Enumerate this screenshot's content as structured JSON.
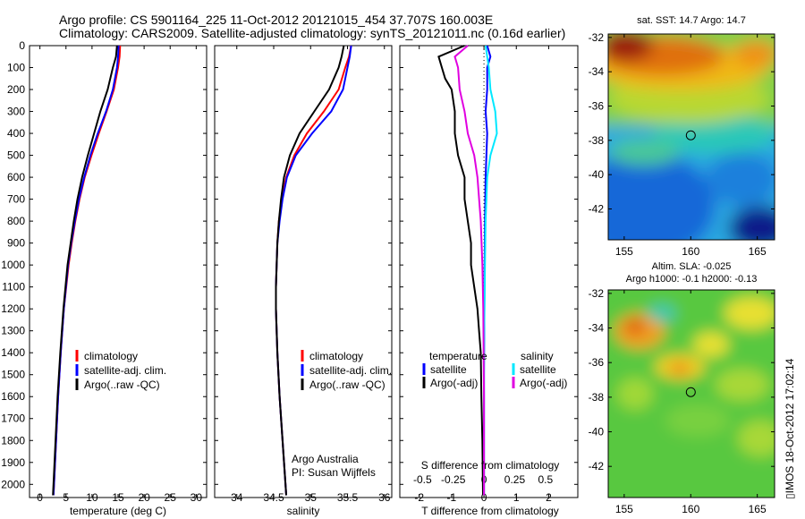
{
  "title": {
    "line1": "Argo profile: CS 5901164_225 11-Oct-2012 20121015_454 37.707S 160.003E",
    "line2": "Climatology: CARS2009. Satellite-adjusted climatology: synTS_20121011.nc (0.16d earlier)"
  },
  "credit": "IMOS 18-Oct-2012 17:02:14",
  "colors": {
    "red": "#ff0000",
    "blue": "#0000ff",
    "black": "#000000",
    "cyan": "#00e8ff",
    "magenta": "#e000e0"
  },
  "chart_data": [
    {
      "type": "line",
      "name": "temperature",
      "xlabel": "temperature (deg C)",
      "ylabel": "",
      "xlim": [
        -2,
        32
      ],
      "ylim": [
        2060,
        0
      ],
      "xticks": [
        0,
        5,
        10,
        15,
        20,
        25,
        30
      ],
      "yticks": [
        0,
        100,
        200,
        300,
        400,
        500,
        600,
        700,
        800,
        900,
        1000,
        1100,
        1200,
        1300,
        1400,
        1500,
        1600,
        1700,
        1800,
        1900,
        2000
      ],
      "legend": [
        "climatology",
        "satellite-adj. clim.",
        "Argo(..raw -QC)"
      ],
      "legend_location": "center-right",
      "series": [
        {
          "color": "red",
          "depth": [
            0,
            50,
            100,
            200,
            300,
            400,
            500,
            600,
            700,
            800,
            900,
            1000,
            1200,
            1400,
            1600,
            1800,
            2000,
            2050
          ],
          "values": [
            15.4,
            15.3,
            15.0,
            14.2,
            12.8,
            11.3,
            9.9,
            8.6,
            7.6,
            6.8,
            6.1,
            5.5,
            4.6,
            4.0,
            3.5,
            3.1,
            2.7,
            2.6
          ]
        },
        {
          "color": "blue",
          "depth": [
            0,
            50,
            100,
            200,
            300,
            400,
            500,
            600,
            700,
            800,
            900,
            1000,
            1200,
            1400,
            1600,
            1800,
            2000,
            2050
          ],
          "values": [
            15.1,
            15.0,
            14.8,
            14.0,
            12.7,
            11.1,
            9.7,
            8.5,
            7.5,
            6.7,
            6.0,
            5.4,
            4.6,
            4.0,
            3.5,
            3.1,
            2.7,
            2.6
          ]
        },
        {
          "color": "black",
          "depth": [
            0,
            50,
            100,
            200,
            300,
            400,
            500,
            600,
            700,
            800,
            900,
            1000,
            1200,
            1400,
            1600,
            1800,
            2000,
            2050
          ],
          "values": [
            14.8,
            14.6,
            14.0,
            13.0,
            11.6,
            10.4,
            9.2,
            8.1,
            7.2,
            6.5,
            5.9,
            5.3,
            4.5,
            3.9,
            3.4,
            3.0,
            2.6,
            2.5
          ]
        }
      ]
    },
    {
      "type": "line",
      "name": "salinity",
      "xlabel": "salinity",
      "ylabel": "",
      "xlim": [
        33.7,
        36.1
      ],
      "ylim": [
        2060,
        0
      ],
      "xticks": [
        34,
        34.5,
        35,
        35.5,
        36
      ],
      "legend": [
        "climatology",
        "satellite-adj. clim.",
        "Argo(..raw -QC)"
      ],
      "legend_location": "center-right",
      "annotation": [
        "Argo Australia",
        "PI: Susan Wijffels"
      ],
      "series": [
        {
          "color": "red",
          "depth": [
            0,
            50,
            100,
            200,
            300,
            400,
            500,
            600,
            700,
            800,
            900,
            1000,
            1100,
            1200,
            1400,
            1600,
            1800,
            2000,
            2050
          ],
          "values": [
            35.55,
            35.52,
            35.47,
            35.38,
            35.18,
            34.95,
            34.78,
            34.67,
            34.61,
            34.57,
            34.55,
            34.54,
            34.53,
            34.53,
            34.55,
            34.58,
            34.62,
            34.66,
            34.67
          ]
        },
        {
          "color": "blue",
          "depth": [
            0,
            50,
            100,
            200,
            300,
            400,
            500,
            600,
            700,
            800,
            900,
            1000,
            1100,
            1200,
            1400,
            1600,
            1800,
            2000,
            2050
          ],
          "values": [
            35.55,
            35.53,
            35.5,
            35.44,
            35.28,
            35.02,
            34.8,
            34.68,
            34.62,
            34.58,
            34.55,
            34.54,
            34.53,
            34.53,
            34.55,
            34.58,
            34.62,
            34.66,
            34.67
          ]
        },
        {
          "color": "black",
          "depth": [
            0,
            50,
            100,
            200,
            300,
            400,
            500,
            600,
            700,
            800,
            900,
            1000,
            1100,
            1200,
            1400,
            1600,
            1800,
            2000,
            2050
          ],
          "values": [
            35.45,
            35.42,
            35.38,
            35.25,
            35.05,
            34.85,
            34.72,
            34.64,
            34.6,
            34.57,
            34.55,
            34.54,
            34.53,
            34.53,
            34.55,
            34.58,
            34.62,
            34.66,
            34.67
          ]
        }
      ]
    },
    {
      "type": "line",
      "name": "difference",
      "xlabel": "T difference from climatology",
      "x2label": "S difference from climatology",
      "xlim": [
        -2.6,
        2.9
      ],
      "ylim": [
        2060,
        0
      ],
      "xticks": [
        -2,
        -1,
        0,
        1,
        2
      ],
      "x2ticks": [
        "-0.5",
        "-0.25",
        "0",
        "0.25",
        "0.5"
      ],
      "x2tick_positions_T": [
        -1.9,
        -0.95,
        0,
        0.95,
        1.9
      ],
      "legend": {
        "temperature_heading": "temperature",
        "salinity_heading": "salinity",
        "temperature": [
          "satellite",
          "Argo(-adj)"
        ],
        "salinity": [
          "satellite",
          "Argo(-adj)"
        ]
      },
      "series": [
        {
          "color": "blue",
          "depth": [
            0,
            50,
            100,
            200,
            300,
            400,
            600,
            800,
            1000,
            1500,
            2050
          ],
          "values": [
            0.1,
            0.2,
            0.1,
            0.1,
            0.05,
            0.1,
            0.05,
            0.03,
            0.02,
            0.0,
            0.0
          ]
        },
        {
          "color": "black",
          "depth": [
            0,
            50,
            100,
            150,
            200,
            300,
            400,
            500,
            600,
            700,
            800,
            900,
            1000,
            1100,
            1200,
            1300,
            1400,
            1600,
            1800,
            2050
          ],
          "values": [
            -0.6,
            -1.4,
            -1.3,
            -1.2,
            -1.0,
            -0.9,
            -0.9,
            -0.8,
            -0.6,
            -0.6,
            -0.5,
            -0.4,
            -0.4,
            -0.3,
            -0.2,
            -0.15,
            -0.1,
            -0.08,
            -0.05,
            -0.03
          ]
        },
        {
          "color": "cyan",
          "depth": [
            0,
            50,
            100,
            200,
            300,
            400,
            500,
            600,
            800,
            1000,
            1400,
            2050
          ],
          "values": [
            0.05,
            0.1,
            0.15,
            0.2,
            0.35,
            0.4,
            0.2,
            0.1,
            0.05,
            0.03,
            0.0,
            0.0
          ]
        },
        {
          "color": "magenta",
          "depth": [
            0,
            50,
            100,
            200,
            300,
            400,
            500,
            600,
            800,
            1000,
            1200,
            1400,
            1600,
            2050
          ],
          "values": [
            -0.5,
            -0.9,
            -0.8,
            -0.75,
            -0.6,
            -0.5,
            -0.3,
            -0.2,
            -0.1,
            -0.05,
            -0.02,
            -0.01,
            0.0,
            0.0
          ]
        }
      ]
    },
    {
      "type": "heatmap",
      "name": "sst_map",
      "title": "sat. SST: 14.7  Argo: 14.7",
      "xlim": [
        153.8,
        166.3
      ],
      "ylim": [
        -43.8,
        -31.8
      ],
      "xticks": [
        155,
        160,
        165
      ],
      "yticks": [
        -32,
        -34,
        -36,
        -38,
        -40,
        -42
      ],
      "marker": [
        160.003,
        -37.707
      ]
    },
    {
      "type": "heatmap",
      "name": "sla_map",
      "title": [
        "Altim. SLA: -0.025",
        "Argo h1000: -0.1 h2000: -0.13"
      ],
      "xlim": [
        153.8,
        166.3
      ],
      "ylim": [
        -43.8,
        -31.8
      ],
      "xticks": [
        155,
        160,
        165
      ],
      "yticks": [
        -32,
        -34,
        -36,
        -38,
        -40,
        -42
      ],
      "marker": [
        160.003,
        -37.707
      ]
    }
  ]
}
